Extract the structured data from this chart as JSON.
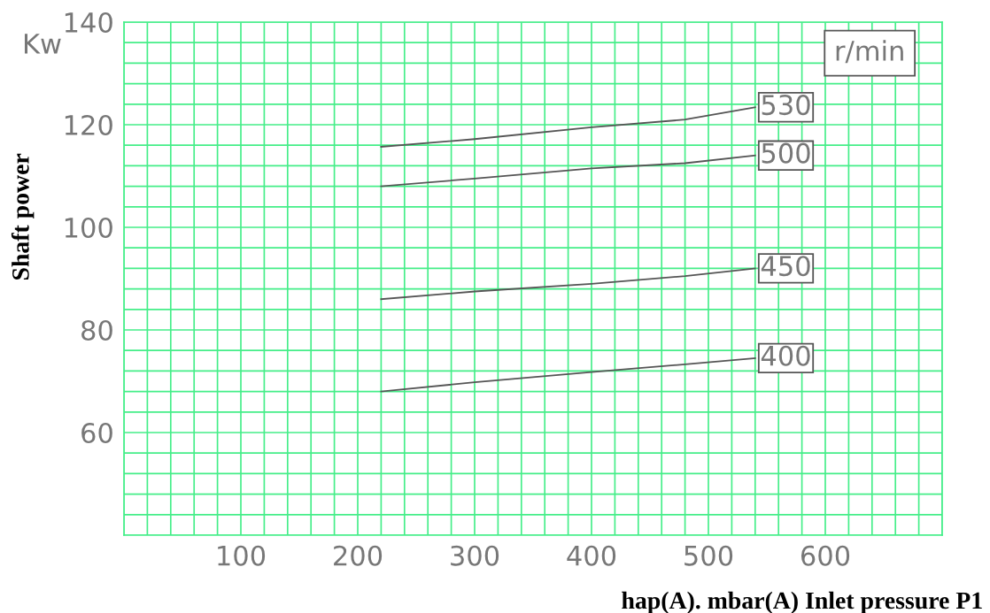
{
  "chart_data": {
    "type": "line",
    "xlabel": "hap(A). mbar(A) Inlet pressure P1",
    "ylabel": "Shaft power",
    "legend_title": "r/min",
    "annotations": [
      "Kw"
    ],
    "xlim": [
      0,
      700
    ],
    "ylim": [
      40,
      140
    ],
    "xticks": [
      {
        "value": 0,
        "label": null
      },
      {
        "value": 20,
        "label": null
      },
      {
        "value": 40,
        "label": null
      },
      {
        "value": 60,
        "label": null
      },
      {
        "value": 80,
        "label": null
      },
      100,
      {
        "value": 120,
        "label": null
      },
      {
        "value": 140,
        "label": null
      },
      {
        "value": 160,
        "label": null
      },
      {
        "value": 180,
        "label": null
      },
      200,
      {
        "value": 220,
        "label": null
      },
      {
        "value": 240,
        "label": null
      },
      {
        "value": 260,
        "label": null
      },
      {
        "value": 280,
        "label": null
      },
      300,
      {
        "value": 320,
        "label": null
      },
      {
        "value": 340,
        "label": null
      },
      {
        "value": 360,
        "label": null
      },
      {
        "value": 380,
        "label": null
      },
      400,
      {
        "value": 420,
        "label": null
      },
      {
        "value": 440,
        "label": null
      },
      {
        "value": 460,
        "label": null
      },
      {
        "value": 480,
        "label": null
      },
      500,
      {
        "value": 520,
        "label": null
      },
      {
        "value": 540,
        "label": null
      },
      {
        "value": 560,
        "label": null
      },
      {
        "value": 580,
        "label": null
      },
      600,
      {
        "value": 620,
        "label": null
      },
      {
        "value": 640,
        "label": null
      },
      {
        "value": 660,
        "label": null
      },
      {
        "value": 680,
        "label": null
      },
      {
        "value": 700,
        "label": null
      }
    ],
    "yticks": [
      {
        "value": 40,
        "label": null
      },
      {
        "value": 44,
        "label": null
      },
      {
        "value": 48,
        "label": null
      },
      {
        "value": 52,
        "label": null
      },
      {
        "value": 56,
        "label": null
      },
      60,
      {
        "value": 64,
        "label": null
      },
      {
        "value": 68,
        "label": null
      },
      {
        "value": 72,
        "label": null
      },
      {
        "value": 76,
        "label": null
      },
      80,
      {
        "value": 84,
        "label": null
      },
      {
        "value": 88,
        "label": null
      },
      {
        "value": 92,
        "label": null
      },
      {
        "value": 96,
        "label": null
      },
      100,
      {
        "value": 104,
        "label": null
      },
      {
        "value": 108,
        "label": null
      },
      {
        "value": 112,
        "label": null
      },
      {
        "value": 116,
        "label": null
      },
      120,
      {
        "value": 124,
        "label": null
      },
      {
        "value": 128,
        "label": null
      },
      {
        "value": 132,
        "label": null
      },
      {
        "value": 136,
        "label": null
      },
      140
    ],
    "grid": true,
    "marker": "none",
    "line_style": "solid",
    "x": [
      220,
      300,
      400,
      480,
      540
    ],
    "series": [
      {
        "name": "530",
        "color": "#555555",
        "values": [
          115.7,
          117.2,
          119.5,
          121,
          123.4
        ]
      },
      {
        "name": "500",
        "color": "#555555",
        "values": [
          108,
          109.5,
          111.5,
          112.5,
          114
        ]
      },
      {
        "name": "450",
        "color": "#555555",
        "values": [
          86,
          87.5,
          89,
          90.5,
          92
        ]
      },
      {
        "name": "400",
        "color": "#555555",
        "values": [
          68,
          69.8,
          71.8,
          73.3,
          74.5
        ]
      }
    ]
  }
}
